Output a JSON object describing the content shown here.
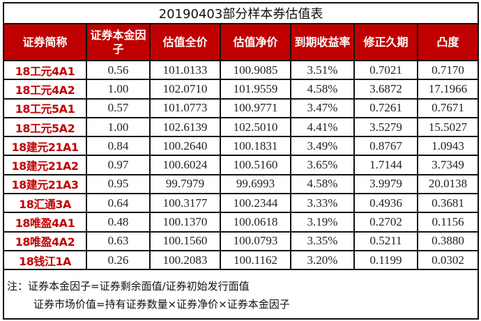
{
  "title": "20190403部分样本券估值表",
  "headers": [
    "证券简称",
    "证券本金因子",
    "估值全价",
    "估值净价",
    "到期收益率",
    "修正久期",
    "凸度"
  ],
  "rows": [
    [
      "18工元4A1",
      "0.56",
      "101.0133",
      "100.9085",
      "3.51%",
      "0.7021",
      "0.7170"
    ],
    [
      "18工元4A2",
      "1.00",
      "102.0710",
      "101.9559",
      "4.58%",
      "3.6872",
      "17.1966"
    ],
    [
      "18工元5A1",
      "0.57",
      "101.0773",
      "100.9771",
      "3.47%",
      "0.7261",
      "0.7671"
    ],
    [
      "18工元5A2",
      "1.00",
      "102.6139",
      "102.5010",
      "4.41%",
      "3.5279",
      "15.5027"
    ],
    [
      "18建元21A1",
      "0.84",
      "100.2640",
      "100.1831",
      "3.49%",
      "0.8767",
      "1.0943"
    ],
    [
      "18建元21A2",
      "0.97",
      "100.6024",
      "100.5160",
      "3.65%",
      "1.7144",
      "3.7349"
    ],
    [
      "18建元21A3",
      "0.95",
      "99.7979",
      "99.6993",
      "4.58%",
      "3.9979",
      "20.0138"
    ],
    [
      "18汇通3A",
      "0.64",
      "100.3177",
      "100.2344",
      "3.33%",
      "0.4936",
      "0.3681"
    ],
    [
      "18唯盈4A1",
      "0.48",
      "100.1370",
      "100.0618",
      "3.19%",
      "0.2702",
      "0.1156"
    ],
    [
      "18唯盈4A2",
      "0.63",
      "100.1560",
      "100.0793",
      "3.35%",
      "0.5211",
      "0.3880"
    ],
    [
      "18钱江1A",
      "0.26",
      "100.2083",
      "100.1162",
      "3.20%",
      "0.1199",
      "0.0302"
    ]
  ],
  "notes": [
    "注：证券本金因子=证券剩余面值/证券初始发行面值",
    "证券市场价值=持有证券数量×证券净价×证券本金因子"
  ],
  "colors": {
    "header_bg": "#c00000",
    "name_text": "#c00000"
  }
}
